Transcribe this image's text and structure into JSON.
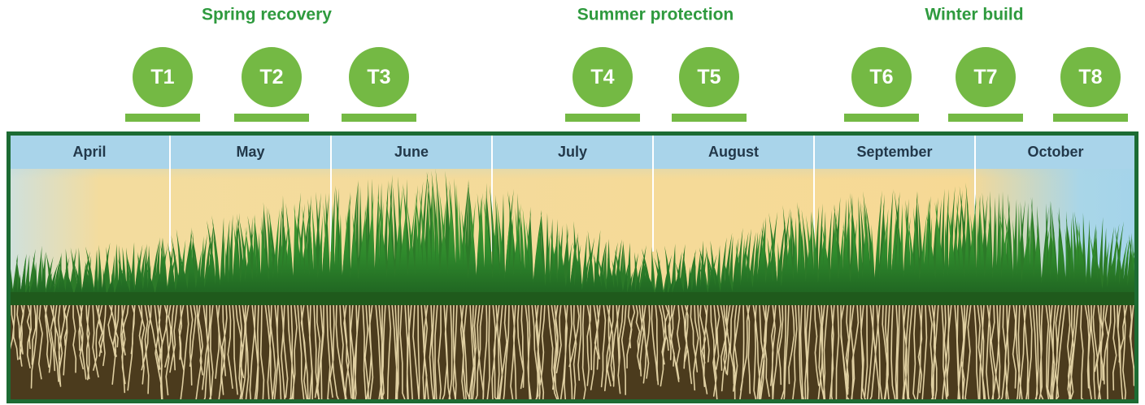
{
  "phases": [
    {
      "label": "Spring recovery"
    },
    {
      "label": "Summer protection"
    },
    {
      "label": "Winter build"
    }
  ],
  "treatments": [
    "T1",
    "T2",
    "T3",
    "T4",
    "T5",
    "T6",
    "T7",
    "T8"
  ],
  "months": [
    "April",
    "May",
    "June",
    "July",
    "August",
    "September",
    "October"
  ]
}
